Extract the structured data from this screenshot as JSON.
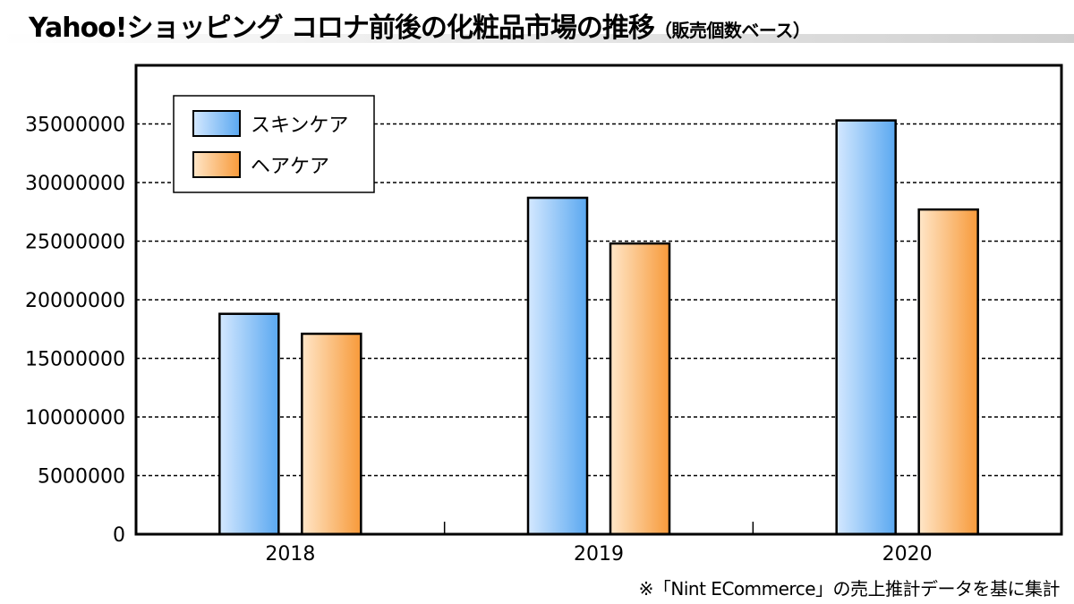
{
  "title": {
    "main": "Yahoo!ショッピング コロナ前後の化粧品市場の推移",
    "sub": "（販売個数ベース）"
  },
  "footnote": "※「Nint ECommerce」の売上推計データを基に集計",
  "colors": {
    "skincare_light": "#d4e8ff",
    "skincare_dark": "#5aa8f0",
    "haircare_light": "#ffe6c8",
    "haircare_dark": "#f79a3a",
    "grid": "#000000"
  },
  "chart_data": {
    "type": "bar",
    "categories": [
      "2018",
      "2019",
      "2020"
    ],
    "series": [
      {
        "name": "スキンケア",
        "values": [
          18800000,
          28700000,
          35300000
        ]
      },
      {
        "name": "ヘアケア",
        "values": [
          17100000,
          24800000,
          27700000
        ]
      }
    ],
    "ylim": [
      0,
      40000000
    ],
    "yticks": [
      "0",
      "5000000",
      "10000000",
      "15000000",
      "20000000",
      "25000000",
      "30000000",
      "35000000"
    ],
    "ytick_values": [
      0,
      5000000,
      10000000,
      15000000,
      20000000,
      25000000,
      30000000,
      35000000
    ],
    "grid": "dashed-horizontal",
    "legend": "top-left",
    "xlabel": "",
    "ylabel": ""
  }
}
